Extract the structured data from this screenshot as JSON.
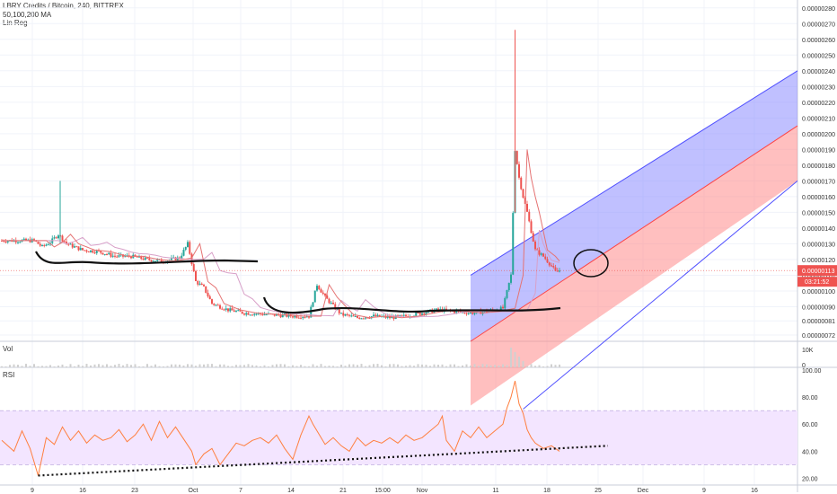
{
  "header": {
    "symbol_line": "LBRY Credits / Bitcoin, 240, BITTREX",
    "ma_line": "50,100,200 MA",
    "linreg_line": "Lin Reg"
  },
  "panes": {
    "volume_label": "Vol",
    "rsi_label": "RSI"
  },
  "price_tag": {
    "value": "0.00000113",
    "countdown": "03:21:52"
  },
  "colors": {
    "up": "#26a69a",
    "down": "#ef5350",
    "ma": "#e57373",
    "channel_blue": "#8d8dff",
    "channel_red": "#ff8a8a",
    "rsi_line": "#ff7f3f",
    "rsi_band": "#f3e5ff"
  },
  "chart_data": [
    {
      "type": "candlestick",
      "title": "LBRY Credits / Bitcoin, 240, BITTREX",
      "y_axis_labels": [
        "0.00000280",
        "0.00000270",
        "0.00000260",
        "0.00000250",
        "0.00000240",
        "0.00000230",
        "0.00000220",
        "0.00000210",
        "0.00000200",
        "0.00000190",
        "0.00000180",
        "0.00000170",
        "0.00000160",
        "0.00000150",
        "0.00000140",
        "0.00000130",
        "0.00000120",
        "0.00000110",
        "0.00000100",
        "0.00000090",
        "0.00000081",
        "0.00000072"
      ],
      "ylim": [
        6.8e-07,
        2.85e-06
      ],
      "x_tick_labels": [
        "9",
        "16",
        "23",
        "Oct",
        "7",
        "14",
        "21",
        "15:00",
        "Nov",
        "11",
        "18",
        "25",
        "Dec",
        "9",
        "16"
      ],
      "last_price": "0.00000113",
      "indicators": [
        "50,100,200 MA",
        "Lin Reg"
      ],
      "price_path": [
        [
          0,
          1.32e-06
        ],
        [
          8,
          1.32e-06
        ],
        [
          10,
          1.28e-06
        ],
        [
          12,
          1.31e-06
        ],
        [
          14,
          1.36e-06
        ],
        [
          16,
          1.3e-06
        ],
        [
          20,
          1.26e-06
        ],
        [
          24,
          1.25e-06
        ],
        [
          28,
          1.22e-06
        ],
        [
          32,
          1.22e-06
        ],
        [
          36,
          1.2e-06
        ],
        [
          40,
          1.19e-06
        ],
        [
          44,
          1.21e-06
        ],
        [
          46,
          1.3e-06
        ],
        [
          48,
          1.06e-06
        ],
        [
          50,
          1.02e-06
        ],
        [
          52,
          9.2e-07
        ],
        [
          56,
          8.8e-07
        ],
        [
          60,
          8.6e-07
        ],
        [
          66,
          8.5e-07
        ],
        [
          72,
          8.4e-07
        ],
        [
          76,
          8.4e-07
        ],
        [
          78,
          1.04e-06
        ],
        [
          80,
          9.6e-07
        ],
        [
          84,
          8.5e-07
        ],
        [
          88,
          8.3e-07
        ],
        [
          92,
          8.4e-07
        ],
        [
          96,
          8.3e-07
        ],
        [
          100,
          8.4e-07
        ],
        [
          104,
          8.6e-07
        ],
        [
          108,
          8.8e-07
        ],
        [
          112,
          8.7e-07
        ],
        [
          116,
          8.6e-07
        ],
        [
          120,
          8.7e-07
        ],
        [
          124,
          8.9e-07
        ],
        [
          126,
          1.1e-06
        ],
        [
          127,
          1.9e-06
        ],
        [
          128,
          1.72e-06
        ],
        [
          129,
          1.6e-06
        ],
        [
          130,
          1.5e-06
        ],
        [
          131,
          1.38e-06
        ],
        [
          132,
          1.26e-06
        ],
        [
          134,
          1.22e-06
        ],
        [
          136,
          1.16e-06
        ],
        [
          137,
          1.12e-06
        ],
        [
          138,
          1.13e-06
        ]
      ],
      "spike_high": [
        127,
        2.66e-06
      ]
    },
    {
      "type": "bar",
      "title": "Vol",
      "y_axis_labels": [
        "10K",
        "0"
      ]
    },
    {
      "type": "line",
      "title": "RSI",
      "y_axis_labels": [
        "100.00",
        "80.00",
        "60.00",
        "40.00",
        "20.00"
      ],
      "ylim": [
        15,
        102
      ],
      "bands": [
        30,
        70
      ],
      "path": [
        [
          0,
          48
        ],
        [
          3,
          40
        ],
        [
          5,
          55
        ],
        [
          7,
          42
        ],
        [
          9,
          22
        ],
        [
          11,
          50
        ],
        [
          13,
          45
        ],
        [
          15,
          58
        ],
        [
          17,
          48
        ],
        [
          19,
          55
        ],
        [
          21,
          46
        ],
        [
          23,
          52
        ],
        [
          25,
          48
        ],
        [
          27,
          50
        ],
        [
          29,
          56
        ],
        [
          31,
          47
        ],
        [
          33,
          52
        ],
        [
          35,
          60
        ],
        [
          37,
          48
        ],
        [
          39,
          62
        ],
        [
          41,
          50
        ],
        [
          43,
          58
        ],
        [
          45,
          49
        ],
        [
          47,
          40
        ],
        [
          48,
          30
        ],
        [
          50,
          38
        ],
        [
          52,
          42
        ],
        [
          54,
          30
        ],
        [
          56,
          38
        ],
        [
          58,
          46
        ],
        [
          60,
          44
        ],
        [
          62,
          48
        ],
        [
          64,
          50
        ],
        [
          66,
          46
        ],
        [
          68,
          52
        ],
        [
          70,
          42
        ],
        [
          72,
          34
        ],
        [
          74,
          52
        ],
        [
          76,
          66
        ],
        [
          77,
          60
        ],
        [
          78,
          55
        ],
        [
          80,
          45
        ],
        [
          82,
          50
        ],
        [
          84,
          44
        ],
        [
          86,
          40
        ],
        [
          88,
          50
        ],
        [
          90,
          44
        ],
        [
          92,
          48
        ],
        [
          94,
          46
        ],
        [
          96,
          50
        ],
        [
          98,
          46
        ],
        [
          100,
          52
        ],
        [
          102,
          48
        ],
        [
          104,
          50
        ],
        [
          106,
          55
        ],
        [
          108,
          60
        ],
        [
          109,
          66
        ],
        [
          110,
          48
        ],
        [
          112,
          40
        ],
        [
          114,
          55
        ],
        [
          116,
          50
        ],
        [
          118,
          58
        ],
        [
          120,
          50
        ],
        [
          122,
          55
        ],
        [
          124,
          60
        ],
        [
          125,
          72
        ],
        [
          126,
          80
        ],
        [
          127,
          92
        ],
        [
          128,
          75
        ],
        [
          129,
          68
        ],
        [
          130,
          56
        ],
        [
          131,
          50
        ],
        [
          132,
          46
        ],
        [
          134,
          42
        ],
        [
          136,
          44
        ],
        [
          138,
          40
        ]
      ],
      "trendline": [
        [
          9,
          22
        ],
        [
          150,
          44
        ]
      ]
    }
  ]
}
